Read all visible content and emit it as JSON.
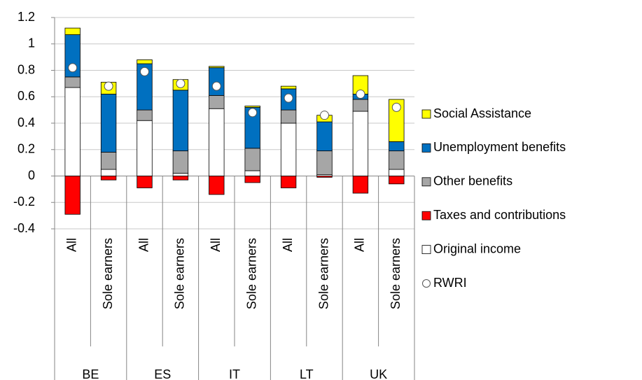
{
  "chart_data": {
    "type": "bar",
    "stacked": true,
    "groups": [
      "BE",
      "ES",
      "IT",
      "LT",
      "UK"
    ],
    "categories": [
      "All",
      "Sole earners",
      "All",
      "Sole earners",
      "All",
      "Sole earners",
      "All",
      "Sole earners",
      "All",
      "Sole earners"
    ],
    "series": [
      {
        "name": "Social Assistance",
        "color": "#ffff00",
        "values": [
          0.05,
          0.09,
          0.03,
          0.08,
          0.01,
          0.01,
          0.02,
          0.05,
          0.14,
          0.32
        ]
      },
      {
        "name": "Unemployment benefits",
        "color": "#0070c0",
        "values": [
          0.32,
          0.44,
          0.35,
          0.46,
          0.21,
          0.31,
          0.16,
          0.22,
          0.04,
          0.07
        ]
      },
      {
        "name": "Other benefits",
        "color": "#a6a6a6",
        "values": [
          0.08,
          0.13,
          0.08,
          0.17,
          0.1,
          0.17,
          0.1,
          0.18,
          0.09,
          0.14
        ]
      },
      {
        "name": "Taxes and contributions",
        "color": "#ff0000",
        "values": [
          -0.29,
          -0.03,
          -0.09,
          -0.03,
          -0.14,
          -0.05,
          -0.09,
          -0.01,
          -0.13,
          -0.06
        ]
      },
      {
        "name": "Original income",
        "color": "#ffffff",
        "values": [
          0.67,
          0.05,
          0.42,
          0.02,
          0.51,
          0.04,
          0.4,
          0.01,
          0.49,
          0.05
        ]
      },
      {
        "name": "RWRI",
        "type": "marker",
        "color": "#ffffff",
        "values": [
          0.82,
          0.68,
          0.79,
          0.7,
          0.68,
          0.48,
          0.59,
          0.46,
          0.62,
          0.52
        ]
      }
    ],
    "ylim": [
      -0.4,
      1.2
    ],
    "yticks": [
      -0.4,
      -0.2,
      0,
      0.2,
      0.4,
      0.6,
      0.8,
      1,
      1.2
    ],
    "grid": true,
    "legend": "right"
  }
}
